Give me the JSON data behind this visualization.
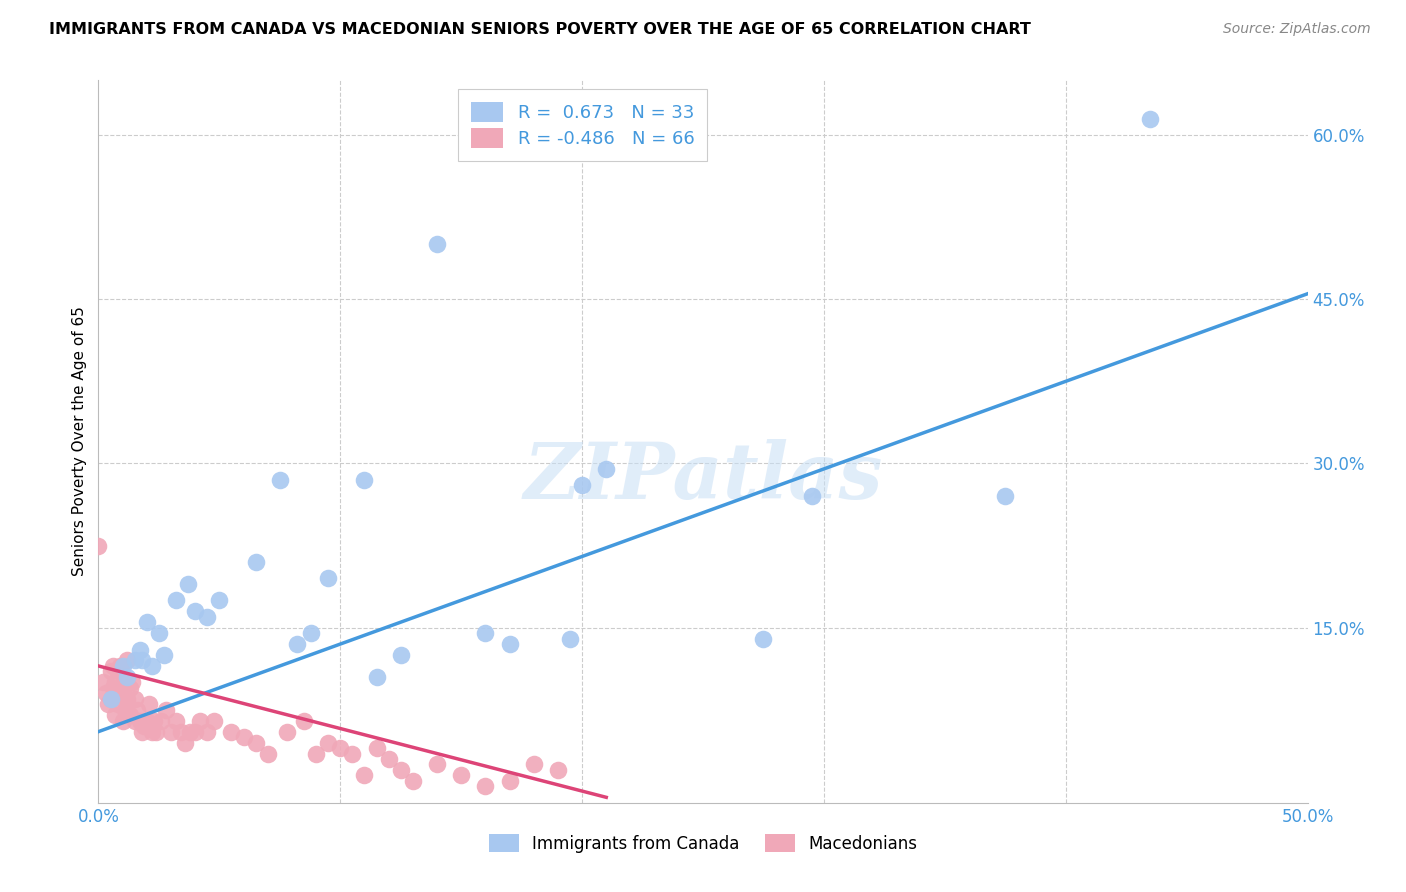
{
  "title": "IMMIGRANTS FROM CANADA VS MACEDONIAN SENIORS POVERTY OVER THE AGE OF 65 CORRELATION CHART",
  "source": "Source: ZipAtlas.com",
  "ylabel": "Seniors Poverty Over the Age of 65",
  "xlim": [
    0.0,
    0.5
  ],
  "ylim": [
    -0.01,
    0.65
  ],
  "xticks": [
    0.0,
    0.1,
    0.2,
    0.3,
    0.4,
    0.5
  ],
  "xtick_labels": [
    "0.0%",
    "",
    "",
    "",
    "",
    "50.0%"
  ],
  "yticks": [
    0.0,
    0.15,
    0.3,
    0.45,
    0.6
  ],
  "ytick_labels": [
    "",
    "15.0%",
    "30.0%",
    "45.0%",
    "60.0%"
  ],
  "blue_color": "#a8c8f0",
  "pink_color": "#f0a8b8",
  "blue_line_color": "#4499dd",
  "pink_line_color": "#dd4477",
  "legend_r_blue": "0.673",
  "legend_n_blue": "33",
  "legend_r_pink": "-0.486",
  "legend_n_pink": "66",
  "legend_label_blue": "Immigrants from Canada",
  "legend_label_pink": "Macedonians",
  "watermark": "ZIPatlas",
  "blue_scatter_x": [
    0.005,
    0.01,
    0.012,
    0.015,
    0.017,
    0.018,
    0.02,
    0.022,
    0.025,
    0.027,
    0.032,
    0.037,
    0.04,
    0.045,
    0.05,
    0.065,
    0.075,
    0.082,
    0.088,
    0.095,
    0.11,
    0.115,
    0.125,
    0.14,
    0.16,
    0.17,
    0.195,
    0.2,
    0.21,
    0.275,
    0.295,
    0.375,
    0.435
  ],
  "blue_scatter_y": [
    0.085,
    0.115,
    0.105,
    0.12,
    0.13,
    0.12,
    0.155,
    0.115,
    0.145,
    0.125,
    0.175,
    0.19,
    0.165,
    0.16,
    0.175,
    0.21,
    0.285,
    0.135,
    0.145,
    0.195,
    0.285,
    0.105,
    0.125,
    0.5,
    0.145,
    0.135,
    0.14,
    0.28,
    0.295,
    0.14,
    0.27,
    0.27,
    0.615
  ],
  "pink_scatter_x": [
    0.0,
    0.002,
    0.003,
    0.004,
    0.005,
    0.005,
    0.006,
    0.006,
    0.007,
    0.007,
    0.008,
    0.008,
    0.009,
    0.009,
    0.01,
    0.01,
    0.011,
    0.011,
    0.012,
    0.012,
    0.013,
    0.013,
    0.014,
    0.015,
    0.015,
    0.016,
    0.017,
    0.018,
    0.019,
    0.02,
    0.021,
    0.022,
    0.023,
    0.024,
    0.026,
    0.028,
    0.03,
    0.032,
    0.034,
    0.036,
    0.038,
    0.04,
    0.042,
    0.045,
    0.048,
    0.055,
    0.06,
    0.065,
    0.07,
    0.078,
    0.085,
    0.09,
    0.095,
    0.1,
    0.105,
    0.11,
    0.115,
    0.12,
    0.125,
    0.13,
    0.14,
    0.15,
    0.16,
    0.17,
    0.18,
    0.19
  ],
  "pink_scatter_y": [
    0.225,
    0.1,
    0.09,
    0.08,
    0.085,
    0.11,
    0.095,
    0.115,
    0.07,
    0.1,
    0.08,
    0.11,
    0.095,
    0.115,
    0.065,
    0.09,
    0.075,
    0.1,
    0.085,
    0.12,
    0.07,
    0.095,
    0.1,
    0.065,
    0.085,
    0.075,
    0.065,
    0.055,
    0.06,
    0.065,
    0.08,
    0.055,
    0.065,
    0.055,
    0.065,
    0.075,
    0.055,
    0.065,
    0.055,
    0.045,
    0.055,
    0.055,
    0.065,
    0.055,
    0.065,
    0.055,
    0.05,
    0.045,
    0.035,
    0.055,
    0.065,
    0.035,
    0.045,
    0.04,
    0.035,
    0.015,
    0.04,
    0.03,
    0.02,
    0.01,
    0.025,
    0.015,
    0.005,
    0.01,
    0.025,
    0.02
  ],
  "blue_line_x": [
    0.0,
    0.5
  ],
  "blue_line_y": [
    0.055,
    0.455
  ],
  "pink_line_x": [
    0.0,
    0.21
  ],
  "pink_line_y": [
    0.115,
    -0.005
  ]
}
